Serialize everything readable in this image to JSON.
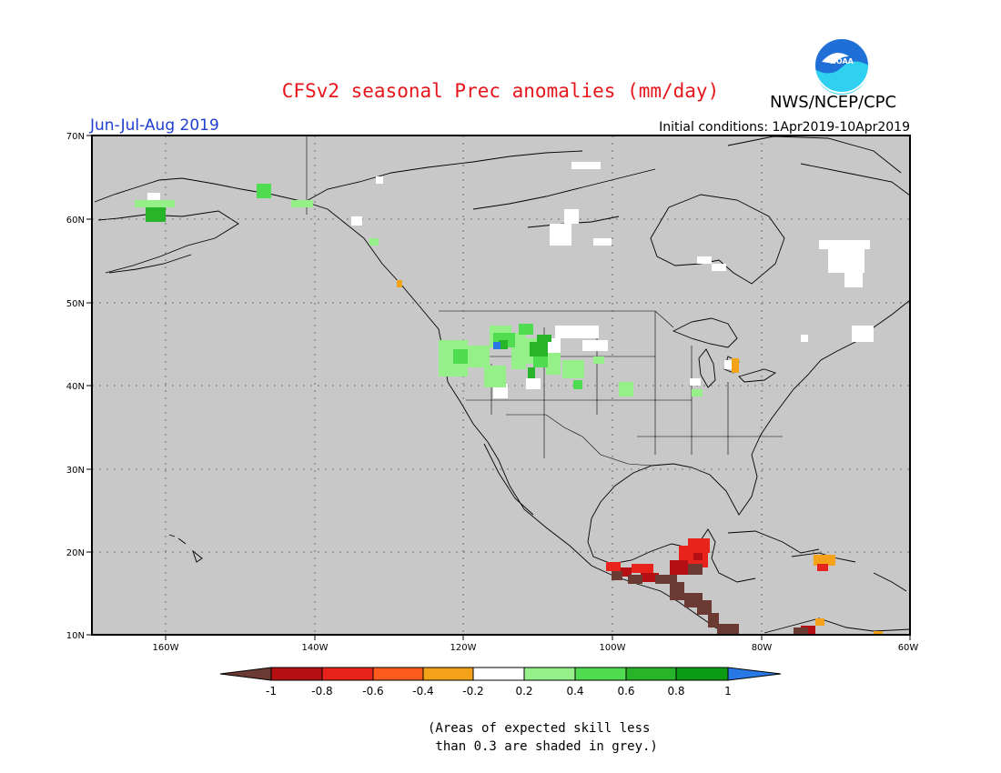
{
  "header": {
    "title": "CFSv2 seasonal Prec anomalies (mm/day)",
    "agency": "NWS/NCEP/CPC",
    "logo_text": "NOAA",
    "season": "Jun-Jul-Aug 2019",
    "initial_conditions": "Initial conditions: 1Apr2019-10Apr2019"
  },
  "map": {
    "lat_labels": [
      "70N",
      "60N",
      "50N",
      "40N",
      "30N",
      "20N",
      "10N"
    ],
    "lon_labels": [
      "160W",
      "140W",
      "120W",
      "100W",
      "80W",
      "60W"
    ],
    "background_color": "#c8c8c8",
    "lat_range": [
      10,
      70
    ],
    "lon_range": [
      -170,
      -60
    ]
  },
  "colorbar": {
    "tick_labels": [
      "-1",
      "-0.8",
      "-0.6",
      "-0.4",
      "-0.2",
      "0.2",
      "0.4",
      "0.6",
      "0.8",
      "1"
    ],
    "colors": [
      "#6b3a32",
      "#b50f14",
      "#e8231c",
      "#ff5a1e",
      "#f4a217",
      "#ffffff",
      "#96f08a",
      "#50dc50",
      "#28b428",
      "#0c9c14",
      "#2878e6"
    ]
  },
  "skill_note": "(Areas of expected skill less\n than 0.3 are shaded in grey.)"
}
